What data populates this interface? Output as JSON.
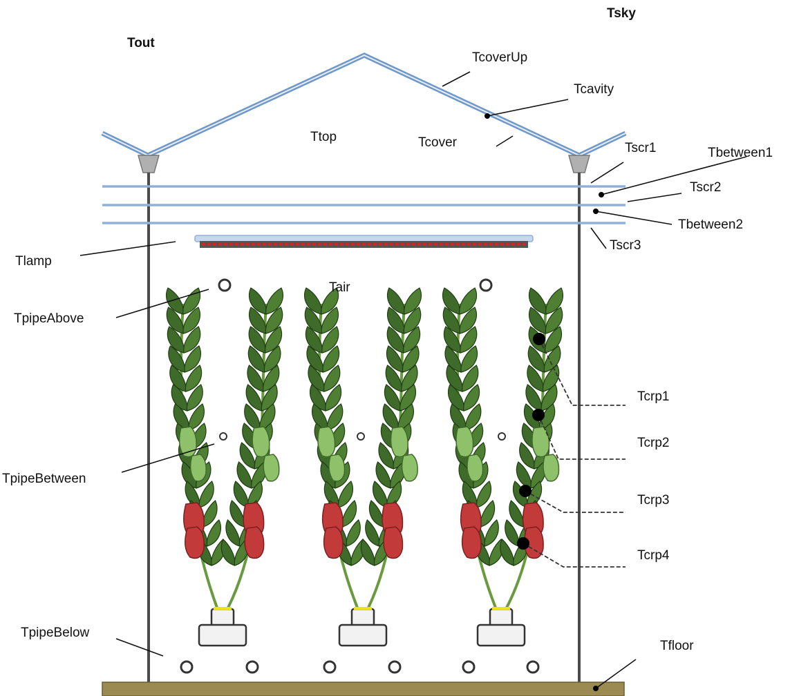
{
  "labels": {
    "tsky": "Tsky",
    "tout": "Tout",
    "tcoverup": "TcoverUp",
    "tcavity": "Tcavity",
    "ttop": "Ttop",
    "tcover": "Tcover",
    "tscr1": "Tscr1",
    "tbetween1": "Tbetween1",
    "tscr2": "Tscr2",
    "tbetween2": "Tbetween2",
    "tscr3": "Tscr3",
    "tlamp": "Tlamp",
    "tair": "Tair",
    "tpipeabove": "TpipeAbove",
    "tcrp1": "Tcrp1",
    "tcrp2": "Tcrp2",
    "tcrp3": "Tcrp3",
    "tcrp4": "Tcrp4",
    "tpipebetween": "TpipeBetween",
    "tpipebelow": "TpipeBelow",
    "tfloor": "Tfloor"
  },
  "colors": {
    "cover": "#6f97c8",
    "screen": "#8fb0da",
    "wall": "#4a4a4a",
    "floor": "#9b8a52",
    "leaf": "#3f6b2a",
    "pepper_red": "#c33a3a",
    "pepper_green": "#8fc06a",
    "lamp_red": "#e02020"
  }
}
